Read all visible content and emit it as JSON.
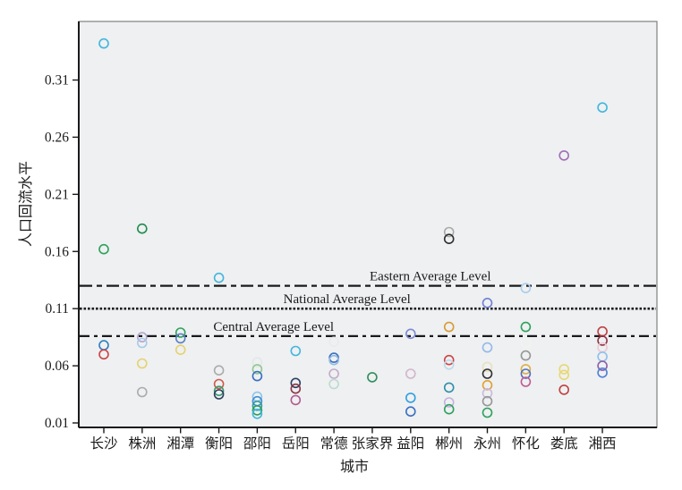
{
  "chart_data": {
    "type": "scatter",
    "title": "",
    "xlabel": "城市",
    "ylabel": "人口回流水平",
    "ylim": [
      0.01,
      0.36
    ],
    "grid": false,
    "marker": "open-circle",
    "plot_background": "#eef0f2",
    "axis_color": "#1a1a1a",
    "frame_color": "#808080",
    "y_tick_labels": [
      "0.31",
      "0.26",
      "0.21",
      "0.16",
      "0.11",
      "0.06",
      "0.01"
    ],
    "categories": [
      "长沙",
      "株洲",
      "湘潭",
      "衡阳",
      "邵阳",
      "岳阳",
      "常德",
      "张家界",
      "益阳",
      "郴州",
      "永州",
      "怀化",
      "娄底",
      "湘西"
    ],
    "reference_lines": [
      {
        "label": "Eastern Average Level",
        "value": 0.13,
        "style": "dash-dot",
        "label_x_frac": 0.608
      },
      {
        "label": "National Average Level",
        "value": 0.11,
        "style": "dense-dash",
        "label_x_frac": 0.464
      },
      {
        "label": "Central Average Level",
        "value": 0.086,
        "style": "dash-dot-short",
        "label_x_frac": 0.337
      }
    ],
    "points": [
      {
        "city": "长沙",
        "value": 0.342,
        "color": "#41b6dc"
      },
      {
        "city": "长沙",
        "value": 0.162,
        "color": "#2fa05c"
      },
      {
        "city": "长沙",
        "value": 0.078,
        "color": "#2e7fc2"
      },
      {
        "city": "长沙",
        "value": 0.07,
        "color": "#cc4444"
      },
      {
        "city": "株洲",
        "value": 0.18,
        "color": "#1f8a4c"
      },
      {
        "city": "株洲",
        "value": 0.085,
        "color": "#b4a6ce"
      },
      {
        "city": "株洲",
        "value": 0.08,
        "color": "#a9c9e9"
      },
      {
        "city": "株洲",
        "value": 0.062,
        "color": "#e4d36e"
      },
      {
        "city": "株洲",
        "value": 0.037,
        "color": "#ababab"
      },
      {
        "city": "湘潭",
        "value": 0.089,
        "color": "#2fa05c"
      },
      {
        "city": "湘潭",
        "value": 0.084,
        "color": "#5b7fc0"
      },
      {
        "city": "湘潭",
        "value": 0.074,
        "color": "#e4d36e"
      },
      {
        "city": "衡阳",
        "value": 0.137,
        "color": "#41b6dc"
      },
      {
        "city": "衡阳",
        "value": 0.056,
        "color": "#ababab"
      },
      {
        "city": "衡阳",
        "value": 0.044,
        "color": "#d05848"
      },
      {
        "city": "衡阳",
        "value": 0.038,
        "color": "#3a9d6c"
      },
      {
        "city": "衡阳",
        "value": 0.035,
        "color": "#2e3f5e"
      },
      {
        "city": "邵阳",
        "value": 0.063,
        "color": "#e3e7e7"
      },
      {
        "city": "邵阳",
        "value": 0.057,
        "color": "#8fc98f"
      },
      {
        "city": "邵阳",
        "value": 0.051,
        "color": "#3a6fc0"
      },
      {
        "city": "邵阳",
        "value": 0.033,
        "color": "#8fc3e8"
      },
      {
        "city": "邵阳",
        "value": 0.029,
        "color": "#3f8fd2"
      },
      {
        "city": "邵阳",
        "value": 0.025,
        "color": "#2f9d9b"
      },
      {
        "city": "邵阳",
        "value": 0.021,
        "color": "#2fa05c"
      },
      {
        "city": "邵阳",
        "value": 0.018,
        "color": "#41b6dc"
      },
      {
        "city": "岳阳",
        "value": 0.073,
        "color": "#41b6dc"
      },
      {
        "city": "岳阳",
        "value": 0.045,
        "color": "#2e3f5e"
      },
      {
        "city": "岳阳",
        "value": 0.04,
        "color": "#8e3342"
      },
      {
        "city": "岳阳",
        "value": 0.03,
        "color": "#b25a92"
      },
      {
        "city": "常德",
        "value": 0.081,
        "color": "#e8ebeb"
      },
      {
        "city": "常德",
        "value": 0.067,
        "color": "#3a6fc0"
      },
      {
        "city": "常德",
        "value": 0.065,
        "color": "#93b9e0"
      },
      {
        "city": "常德",
        "value": 0.053,
        "color": "#c3aacc"
      },
      {
        "city": "常德",
        "value": 0.044,
        "color": "#bedacd"
      },
      {
        "city": "张家界",
        "value": 0.056,
        "color": "#f0f0ee"
      },
      {
        "city": "张家界",
        "value": 0.05,
        "color": "#2f8f5c"
      },
      {
        "city": "益阳",
        "value": 0.088,
        "color": "#7b88d2"
      },
      {
        "city": "益阳",
        "value": 0.053,
        "color": "#d4b4cc"
      },
      {
        "city": "益阳",
        "value": 0.032,
        "color": "#2f9fe0"
      },
      {
        "city": "益阳",
        "value": 0.02,
        "color": "#3a6fc0"
      },
      {
        "city": "郴州",
        "value": 0.177,
        "color": "#a8a8a8"
      },
      {
        "city": "郴州",
        "value": 0.171,
        "color": "#2f2f2f"
      },
      {
        "city": "郴州",
        "value": 0.094,
        "color": "#d99a33"
      },
      {
        "city": "郴州",
        "value": 0.065,
        "color": "#d04343"
      },
      {
        "city": "郴州",
        "value": 0.061,
        "color": "#bcd9e9"
      },
      {
        "city": "郴州",
        "value": 0.041,
        "color": "#2f8fa9"
      },
      {
        "city": "郴州",
        "value": 0.028,
        "color": "#c2b1de"
      },
      {
        "city": "郴州",
        "value": 0.022,
        "color": "#2fa05c"
      },
      {
        "city": "永州",
        "value": 0.115,
        "color": "#6f7fd2"
      },
      {
        "city": "永州",
        "value": 0.076,
        "color": "#93b9e9"
      },
      {
        "city": "永州",
        "value": 0.059,
        "color": "#e9e0bd"
      },
      {
        "city": "永州",
        "value": 0.053,
        "color": "#2f2f2f"
      },
      {
        "city": "永州",
        "value": 0.043,
        "color": "#e0a030"
      },
      {
        "city": "永州",
        "value": 0.036,
        "color": "#c9b9e0"
      },
      {
        "city": "永州",
        "value": 0.029,
        "color": "#969696"
      },
      {
        "city": "永州",
        "value": 0.019,
        "color": "#2fa05c"
      },
      {
        "city": "怀化",
        "value": 0.128,
        "color": "#aacde9"
      },
      {
        "city": "怀化",
        "value": 0.094,
        "color": "#2fa05c"
      },
      {
        "city": "怀化",
        "value": 0.08,
        "color": "#f2f2f0"
      },
      {
        "city": "怀化",
        "value": 0.069,
        "color": "#969696"
      },
      {
        "city": "怀化",
        "value": 0.057,
        "color": "#ddb043"
      },
      {
        "city": "怀化",
        "value": 0.053,
        "color": "#5570b8"
      },
      {
        "city": "怀化",
        "value": 0.046,
        "color": "#c05a90"
      },
      {
        "city": "娄底",
        "value": 0.244,
        "color": "#a06cb8"
      },
      {
        "city": "娄底",
        "value": 0.057,
        "color": "#e8d870"
      },
      {
        "city": "娄底",
        "value": 0.052,
        "color": "#e8d870"
      },
      {
        "city": "娄底",
        "value": 0.039,
        "color": "#c04040"
      },
      {
        "city": "湘西",
        "value": 0.286,
        "color": "#41b6dc"
      },
      {
        "city": "湘西",
        "value": 0.09,
        "color": "#c04040"
      },
      {
        "city": "湘西",
        "value": 0.082,
        "color": "#8e3342"
      },
      {
        "city": "湘西",
        "value": 0.076,
        "color": "#ecc9d4"
      },
      {
        "city": "湘西",
        "value": 0.068,
        "color": "#90c0e8"
      },
      {
        "city": "湘西",
        "value": 0.06,
        "color": "#8f5fa8"
      },
      {
        "city": "湘西",
        "value": 0.054,
        "color": "#4f7fd2"
      }
    ]
  }
}
